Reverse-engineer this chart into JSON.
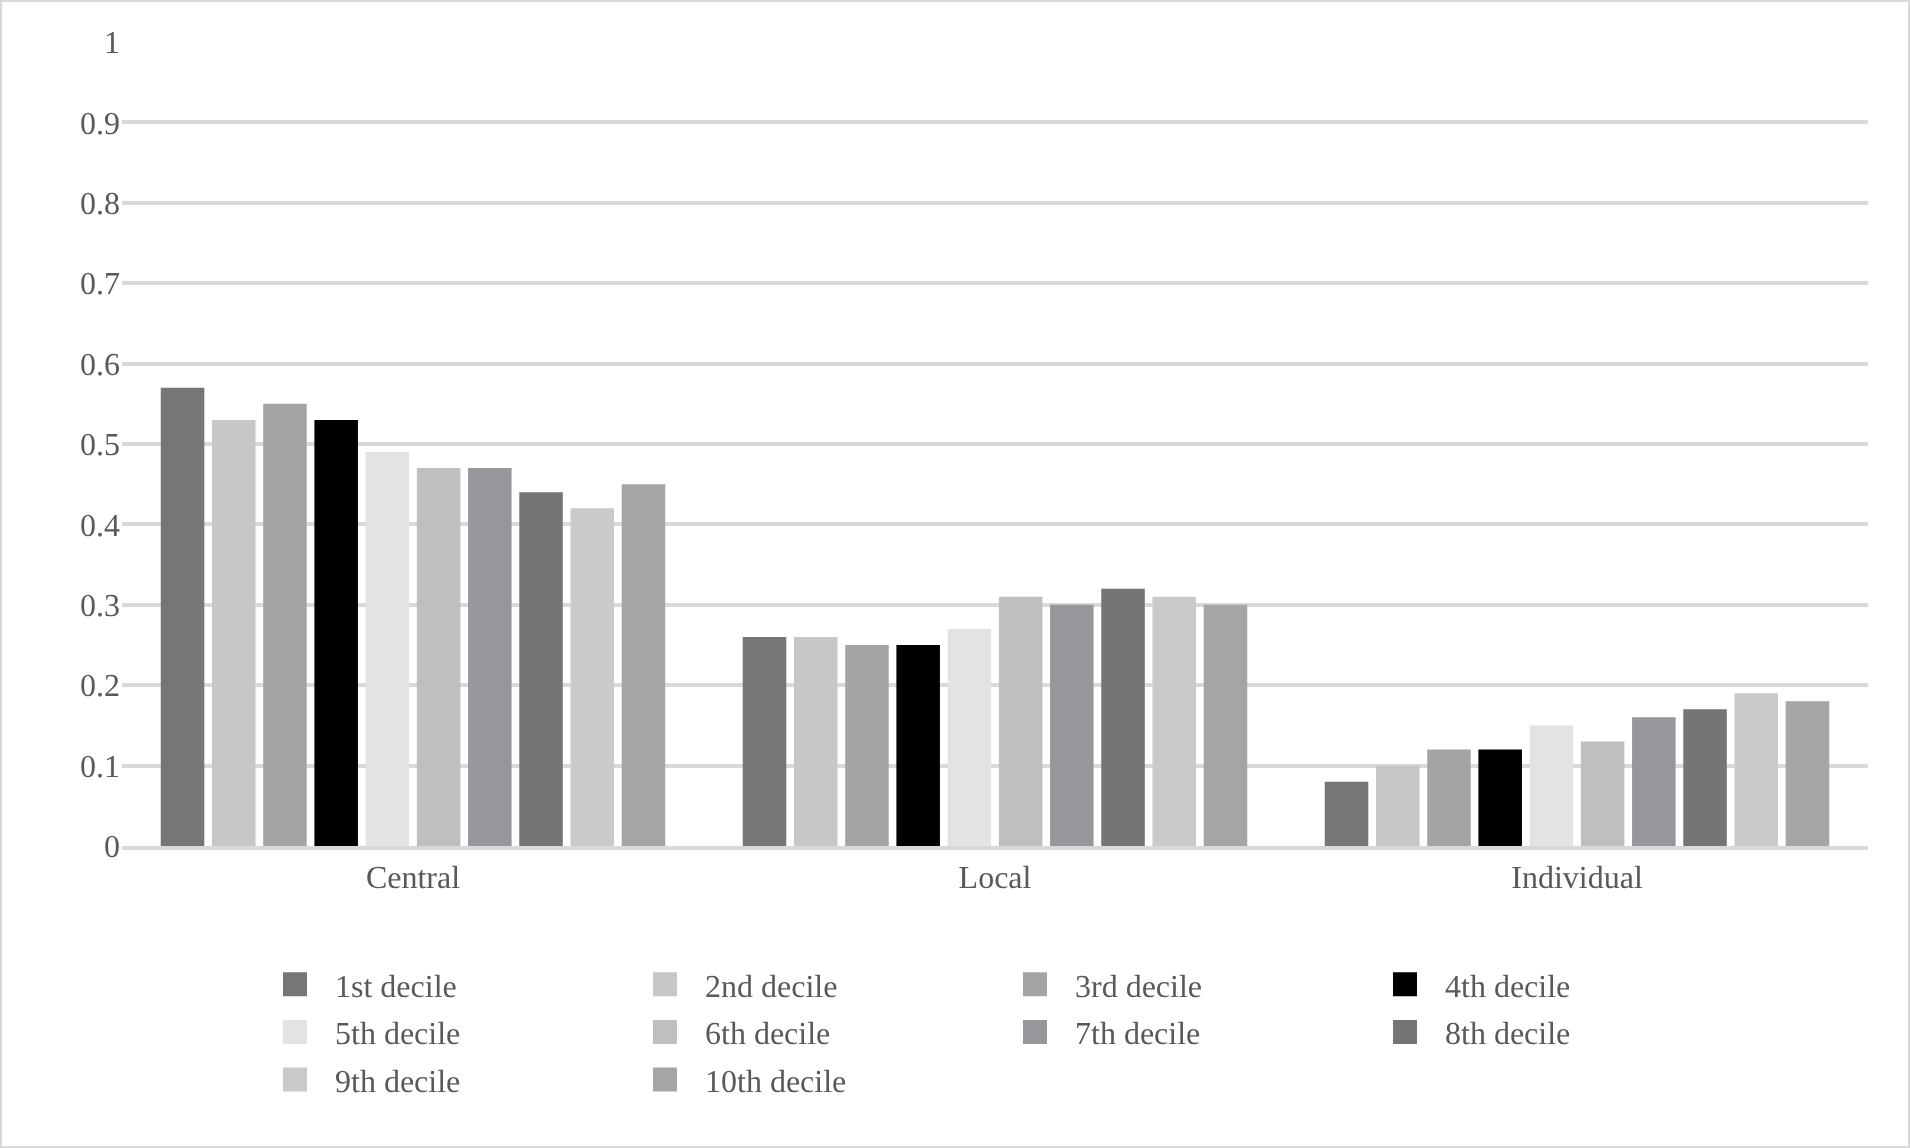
{
  "chart_data": {
    "type": "bar",
    "categories": [
      "Central",
      "Local",
      "Individual"
    ],
    "series": [
      {
        "name": "1st decile",
        "color": "#767676",
        "values": [
          0.57,
          0.26,
          0.08
        ]
      },
      {
        "name": "2nd decile",
        "color": "#c6c7c8",
        "values": [
          0.53,
          0.26,
          0.1
        ]
      },
      {
        "name": "3rd decile",
        "color": "#a3a4a6",
        "values": [
          0.55,
          0.25,
          0.12
        ]
      },
      {
        "name": "4th decile",
        "color": "#000000",
        "values": [
          0.53,
          0.25,
          0.12
        ]
      },
      {
        "name": "5th decile",
        "color": "#e2e3e4",
        "values": [
          0.49,
          0.27,
          0.15
        ]
      },
      {
        "name": "6th decile",
        "color": "#bebfc0",
        "values": [
          0.47,
          0.31,
          0.13
        ]
      },
      {
        "name": "7th decile",
        "color": "#96979a",
        "values": [
          0.47,
          0.3,
          0.16
        ]
      },
      {
        "name": "8th decile",
        "color": "#747576",
        "values": [
          0.44,
          0.32,
          0.17
        ]
      },
      {
        "name": "9th decile",
        "color": "#c9cacb",
        "values": [
          0.42,
          0.31,
          0.19
        ]
      },
      {
        "name": "10th decile",
        "color": "#a4a5a7",
        "values": [
          0.45,
          0.3,
          0.18
        ]
      }
    ],
    "ylim": [
      0,
      1
    ],
    "yticks": [
      0,
      0.1,
      0.2,
      0.3,
      0.4,
      0.5,
      0.6,
      0.7,
      0.8,
      0.9,
      1
    ],
    "grid": "y",
    "legend": "bottom"
  }
}
